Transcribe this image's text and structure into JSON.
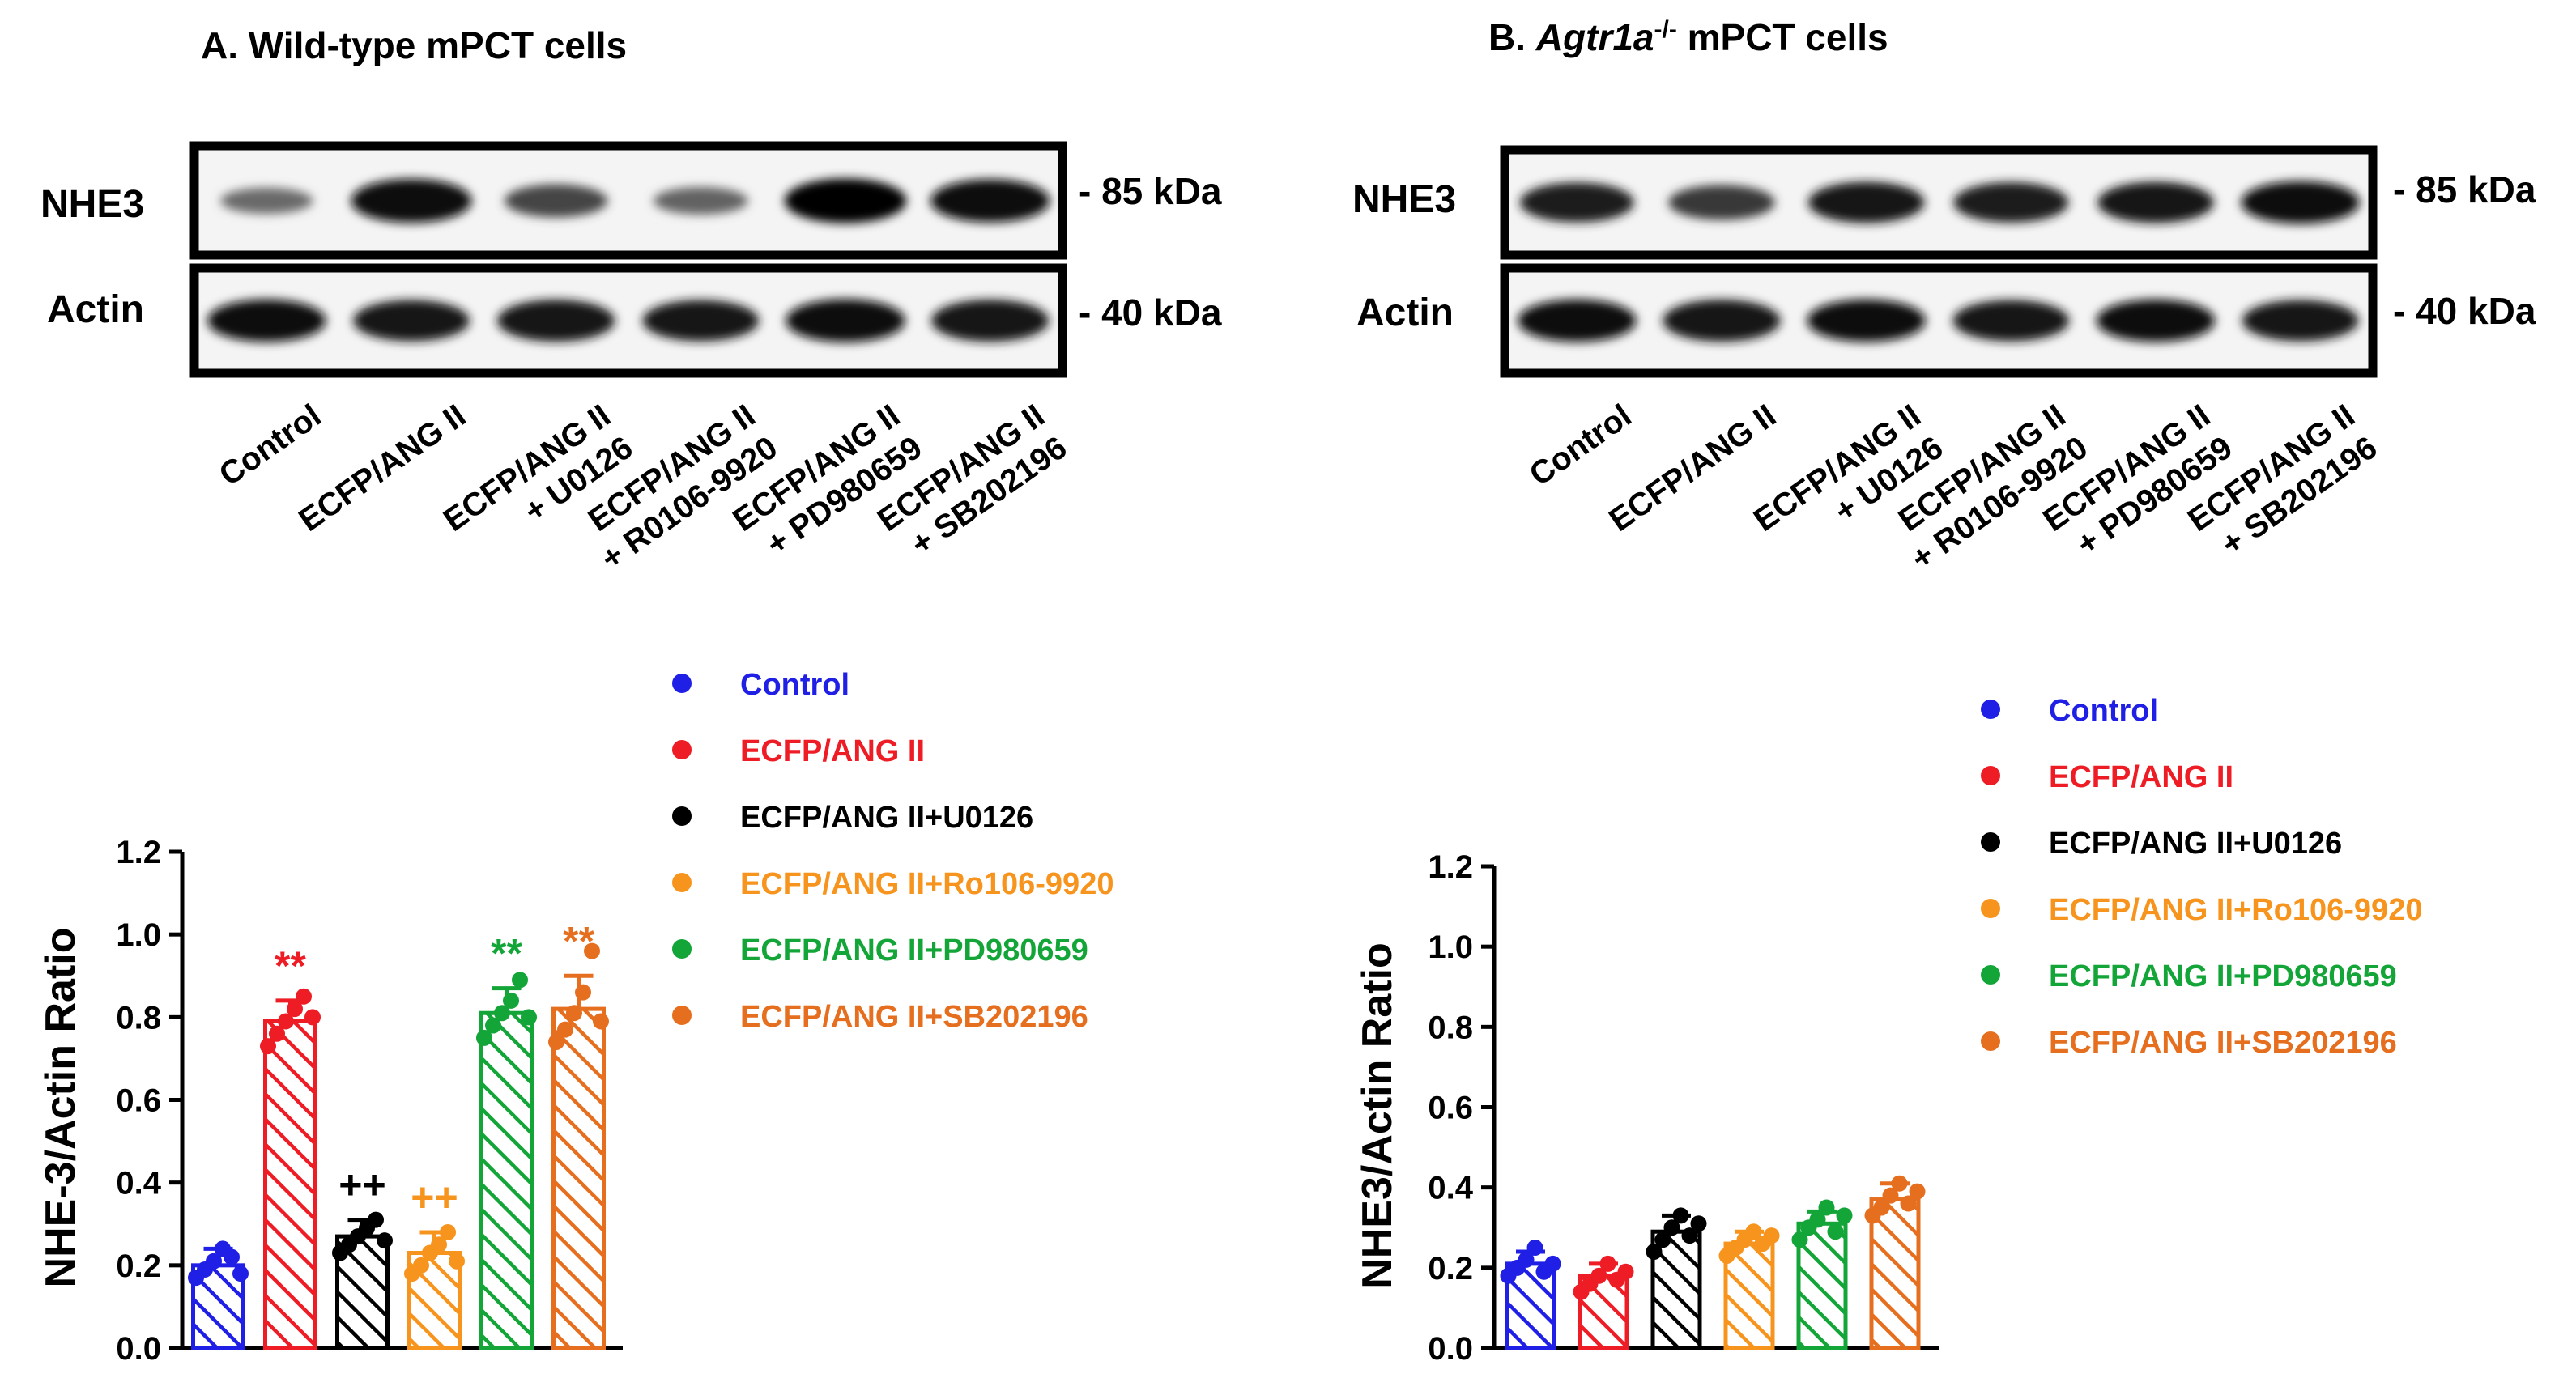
{
  "panels": [
    {
      "title_prefix": "A. ",
      "title_italic": "",
      "title_sup": "",
      "title_suffix": "Wild-type mPCT cells",
      "blot": {
        "rows": [
          {
            "label": "NHE3",
            "marker": "- 85 kDa",
            "intensities": [
              0.3,
              0.95,
              0.55,
              0.35,
              0.98,
              0.92
            ]
          },
          {
            "label": "Actin",
            "marker": "- 40 kDa",
            "intensities": [
              0.9,
              0.85,
              0.88,
              0.85,
              0.92,
              0.88
            ]
          }
        ],
        "lane_labels": [
          [
            "Control"
          ],
          [
            "ECFP/ANG II"
          ],
          [
            "ECFP/ANG II",
            "+ U0126"
          ],
          [
            "ECFP/ANG II",
            "+ R0106-9920"
          ],
          [
            "ECFP/ANG II",
            "+ PD980659"
          ],
          [
            "ECFP/ANG II",
            "+ SB202196"
          ]
        ]
      },
      "legend": [
        {
          "label": "Control",
          "color": "#1f1fe6"
        },
        {
          "label": "ECFP/ANG II",
          "color": "#ee1c25"
        },
        {
          "label": "ECFP/ANG II+U0126",
          "color": "#000000"
        },
        {
          "label": "ECFP/ANG II+Ro106-9920",
          "color": "#f7941d"
        },
        {
          "label": "ECFP/ANG II+PD980659",
          "color": "#13a538"
        },
        {
          "label": "ECFP/ANG II+SB202196",
          "color": "#e56f1e"
        }
      ]
    },
    {
      "title_prefix": "B. ",
      "title_italic": "Agtr1a",
      "title_sup": "-/-",
      "title_suffix": " mPCT cells",
      "blot": {
        "rows": [
          {
            "label": "NHE3",
            "marker": "- 85 kDa",
            "intensities": [
              0.8,
              0.62,
              0.85,
              0.82,
              0.85,
              0.9
            ]
          },
          {
            "label": "Actin",
            "marker": "- 40 kDa",
            "intensities": [
              0.9,
              0.88,
              0.9,
              0.85,
              0.9,
              0.85
            ]
          }
        ],
        "lane_labels": [
          [
            "Control"
          ],
          [
            "ECFP/ANG II"
          ],
          [
            "ECFP/ANG II",
            "+ U0126"
          ],
          [
            "ECFP/ANG II",
            "+ R0106-9920"
          ],
          [
            "ECFP/ANG II",
            "+ PD980659"
          ],
          [
            "ECFP/ANG II",
            "+ SB202196"
          ]
        ]
      },
      "legend": [
        {
          "label": "Control",
          "color": "#1f1fe6"
        },
        {
          "label": "ECFP/ANG II",
          "color": "#ee1c25"
        },
        {
          "label": "ECFP/ANG II+U0126",
          "color": "#000000"
        },
        {
          "label": "ECFP/ANG II+Ro106-9920",
          "color": "#f7941d"
        },
        {
          "label": "ECFP/ANG II+PD980659",
          "color": "#13a538"
        },
        {
          "label": "ECFP/ANG II+SB202196",
          "color": "#e56f1e"
        }
      ]
    }
  ],
  "chart_data": [
    {
      "type": "bar",
      "panel": "A",
      "ylabel": "NHE-3/Actin Ratio",
      "ylim": [
        0,
        1.2
      ],
      "yticks": [
        "0.0",
        "0.2",
        "0.4",
        "0.6",
        "0.8",
        "1.0",
        "1.2"
      ],
      "categories": [
        "Control",
        "ECFP/ANG II",
        "ECFP/ANG II+U0126",
        "ECFP/ANG II+Ro106-9920",
        "ECFP/ANG II+PD980659",
        "ECFP/ANG II+SB202196"
      ],
      "values": [
        0.2,
        0.79,
        0.27,
        0.23,
        0.81,
        0.82
      ],
      "errors": [
        0.04,
        0.05,
        0.04,
        0.05,
        0.06,
        0.08
      ],
      "points": [
        [
          0.17,
          0.19,
          0.21,
          0.24,
          0.22,
          0.18
        ],
        [
          0.73,
          0.76,
          0.79,
          0.82,
          0.85,
          0.8
        ],
        [
          0.23,
          0.25,
          0.27,
          0.29,
          0.31,
          0.26
        ],
        [
          0.18,
          0.2,
          0.23,
          0.25,
          0.28,
          0.21
        ],
        [
          0.75,
          0.78,
          0.81,
          0.84,
          0.89,
          0.8
        ],
        [
          0.74,
          0.77,
          0.81,
          0.86,
          0.96,
          0.79
        ]
      ],
      "annotations": [
        "",
        "**",
        "++",
        "++",
        "**",
        "**"
      ],
      "colors": [
        "#1f1fe6",
        "#ee1c25",
        "#000000",
        "#f7941d",
        "#13a538",
        "#e56f1e"
      ],
      "grid": false
    },
    {
      "type": "bar",
      "panel": "B",
      "ylabel": "NHE3/Actin Ratio",
      "ylim": [
        0,
        1.2
      ],
      "yticks": [
        "0.0",
        "0.2",
        "0.4",
        "0.6",
        "0.8",
        "1.0",
        "1.2"
      ],
      "categories": [
        "Control",
        "ECFP/ANG II",
        "ECFP/ANG II+U0126",
        "ECFP/ANG II+Ro106-9920",
        "ECFP/ANG II+PD980659",
        "ECFP/ANG II+SB202196"
      ],
      "values": [
        0.21,
        0.18,
        0.29,
        0.26,
        0.31,
        0.37
      ],
      "errors": [
        0.03,
        0.03,
        0.04,
        0.03,
        0.03,
        0.04
      ],
      "points": [
        [
          0.18,
          0.2,
          0.22,
          0.25,
          0.19,
          0.21
        ],
        [
          0.14,
          0.16,
          0.18,
          0.21,
          0.17,
          0.19
        ],
        [
          0.24,
          0.27,
          0.3,
          0.33,
          0.28,
          0.31
        ],
        [
          0.23,
          0.25,
          0.27,
          0.29,
          0.26,
          0.28
        ],
        [
          0.27,
          0.3,
          0.32,
          0.35,
          0.29,
          0.33
        ],
        [
          0.33,
          0.35,
          0.38,
          0.41,
          0.36,
          0.39
        ]
      ],
      "annotations": [
        "",
        "",
        "",
        "",
        "",
        ""
      ],
      "colors": [
        "#1f1fe6",
        "#ee1c25",
        "#000000",
        "#f7941d",
        "#13a538",
        "#e56f1e"
      ],
      "grid": false
    }
  ]
}
